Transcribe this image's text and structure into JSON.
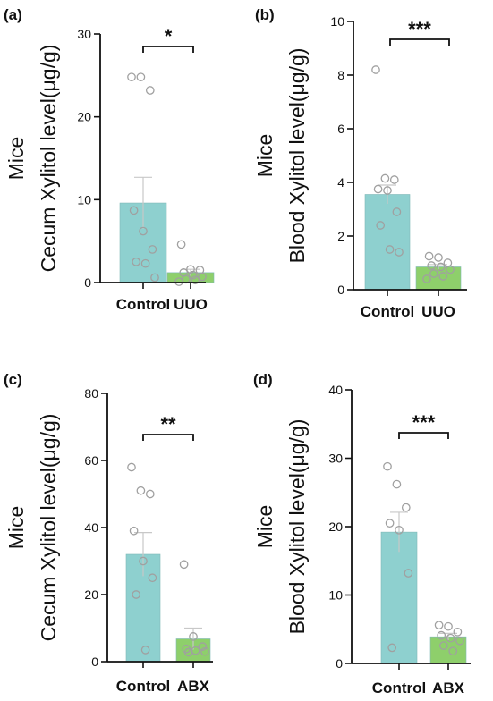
{
  "colors": {
    "control_bar": "#8ed0cf",
    "treatment_bar": "#8ecf6b",
    "point_stroke": "#a0a0a0",
    "axis": "#111111",
    "errorbar": "#c8c8c8"
  },
  "chart_data": [
    {
      "type": "bar",
      "panel_label": "(a)",
      "title": "",
      "ylabel_top": "Mice",
      "ylabel": "Cecum Xylitol level(μg/g)",
      "categories": [
        "Control",
        "UUO"
      ],
      "values": [
        9.6,
        1.2
      ],
      "sem": [
        3.1,
        0.4
      ],
      "points": [
        [
          24.8,
          24.8,
          23.2,
          8.7,
          6.2,
          4.0,
          2.5,
          2.3,
          0.6
        ],
        [
          4.6,
          1.6,
          1.5,
          1.2,
          0.9,
          0.7,
          0.4,
          0.3,
          0.1
        ]
      ],
      "ylim": [
        0,
        30
      ],
      "yticks": [
        0,
        10,
        20,
        30
      ],
      "significance": "*"
    },
    {
      "type": "bar",
      "panel_label": "(b)",
      "title": "",
      "ylabel_top": "Mice",
      "ylabel": "Blood Xylitol level(μg/g)",
      "categories": [
        "Control",
        "UUO"
      ],
      "values": [
        3.55,
        0.85
      ],
      "sem": [
        0.35,
        0.09
      ],
      "points": [
        [
          8.2,
          4.15,
          4.1,
          3.75,
          3.7,
          2.9,
          2.4,
          1.5,
          1.4
        ],
        [
          1.25,
          1.2,
          1.0,
          0.9,
          0.85,
          0.75,
          0.6,
          0.5,
          0.4
        ]
      ],
      "ylim": [
        0,
        10
      ],
      "yticks": [
        0,
        2,
        4,
        6,
        8,
        10
      ],
      "significance": "***"
    },
    {
      "type": "bar",
      "panel_label": "(c)",
      "title": "",
      "ylabel_top": "Mice",
      "ylabel": "Cecum Xylitol level(μg/g)",
      "categories": [
        "Control",
        "ABX"
      ],
      "values": [
        32,
        6.8
      ],
      "sem": [
        6.5,
        3.2
      ],
      "points": [
        [
          58,
          51,
          50,
          39,
          30,
          25,
          20,
          3.5
        ],
        [
          29,
          7.5,
          4.5,
          3.8,
          3.3,
          3.0,
          2.8
        ]
      ],
      "ylim": [
        0,
        80
      ],
      "yticks": [
        0,
        20,
        40,
        60,
        80
      ],
      "significance": "**"
    },
    {
      "type": "bar",
      "panel_label": "(d)",
      "title": "",
      "ylabel_top": "Mice",
      "ylabel": "Blood Xylitol level(μg/g)",
      "categories": [
        "Control",
        "ABX"
      ],
      "values": [
        19.2,
        3.9
      ],
      "sem": [
        2.9,
        0.5
      ],
      "points": [
        [
          28.8,
          26.2,
          22.8,
          20.5,
          19.5,
          13.2,
          2.3
        ],
        [
          5.6,
          5.4,
          4.6,
          4.1,
          3.7,
          3.3,
          2.6,
          1.8
        ]
      ],
      "ylim": [
        0,
        40
      ],
      "yticks": [
        0,
        10,
        20,
        30,
        40
      ],
      "significance": "***"
    }
  ]
}
